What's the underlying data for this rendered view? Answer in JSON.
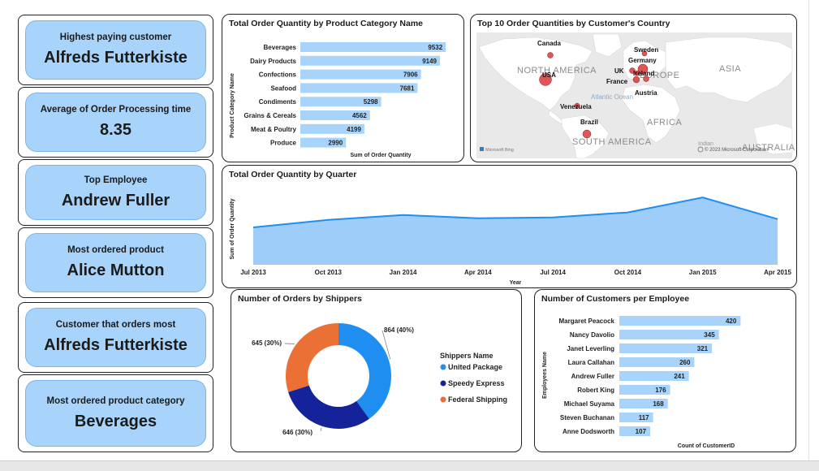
{
  "kpis": [
    {
      "label": "Highest paying customer",
      "value": "Alfreds Futterkiste"
    },
    {
      "label": "Average of Order Processing time",
      "value": "8.35"
    },
    {
      "label": "Top Employee",
      "value": "Andrew Fuller"
    },
    {
      "label": "Most ordered product",
      "value": "Alice Mutton"
    },
    {
      "label": "Customer that orders most",
      "value": "Alfreds Futterkiste"
    },
    {
      "label": "Most ordered product category",
      "value": "Beverages"
    }
  ],
  "colors": {
    "bar": "#a8d4fb",
    "area": "#9ecdfa",
    "line": "#1f8ef1",
    "shipper_united": "#1f8ef1",
    "shipper_speedy": "#15239a",
    "shipper_federal": "#ea7036",
    "map_water": "#eaeaea",
    "map_land": "#ffffff",
    "map_dot": "#d9383a"
  },
  "map": {
    "title": "Top 10 Order Quantities by Customer's Country",
    "continents": [
      "NORTH AMERICA",
      "SOUTH AMERICA",
      "EUROPE",
      "ASIA",
      "AFRICA",
      "AUSTRALIA"
    ],
    "oceans": [
      "Atlantic Ocean",
      "Indian"
    ],
    "countries": [
      "Canada",
      "USA",
      "Sweden",
      "Germany",
      "UK",
      "Ireland",
      "France",
      "Austria",
      "Venezuela",
      "Brazil"
    ],
    "watermark": "Microsoft Bing",
    "copyright": "© 2023 Microsoft Corporation"
  },
  "chart_data": [
    {
      "type": "bar",
      "orientation": "horizontal",
      "title": "Total Order Quantity by Product Category Name",
      "xlabel": "Sum of Order Quantity",
      "ylabel": "Product Category Name",
      "categories": [
        "Beverages",
        "Dairy Products",
        "Confections",
        "Seafood",
        "Condiments",
        "Grains & Cereals",
        "Meat & Poultry",
        "Produce"
      ],
      "values": [
        9532,
        9149,
        7906,
        7681,
        5298,
        4562,
        4199,
        2990
      ],
      "xlim": [
        0,
        10000
      ]
    },
    {
      "type": "area",
      "title": "Total Order Quantity by Quarter",
      "xlabel": "Year",
      "ylabel": "Sum of Order Quantity",
      "x": [
        "Jul 2013",
        "Oct 2013",
        "Jan 2014",
        "Apr 2014",
        "Jul 2014",
        "Oct 2014",
        "Jan 2015",
        "Apr 2015"
      ],
      "values": [
        4500,
        5400,
        6000,
        5600,
        5700,
        6300,
        8100,
        5500
      ],
      "ylim": [
        0,
        9000
      ]
    },
    {
      "type": "pie",
      "variant": "donut",
      "title": "Number of Orders by Shippers",
      "legend_title": "Shippers Name",
      "categories": [
        "United Package",
        "Speedy Express",
        "Federal Shipping"
      ],
      "values": [
        864,
        646,
        645
      ],
      "labels": [
        "864 (40%)",
        "646 (30%)",
        "645 (30%)"
      ]
    },
    {
      "type": "bar",
      "orientation": "horizontal",
      "title": "Number of Customers per Employee",
      "xlabel": "Count of CustomerID",
      "ylabel": "Employees Name",
      "categories": [
        "Margaret Peacock",
        "Nancy Davolio",
        "Janet Leverling",
        "Laura Callahan",
        "Andrew Fuller",
        "Robert King",
        "Michael Suyama",
        "Steven Buchanan",
        "Anne Dodsworth"
      ],
      "values": [
        420,
        345,
        321,
        260,
        241,
        176,
        168,
        117,
        107
      ],
      "xlim": [
        0,
        450
      ]
    }
  ]
}
